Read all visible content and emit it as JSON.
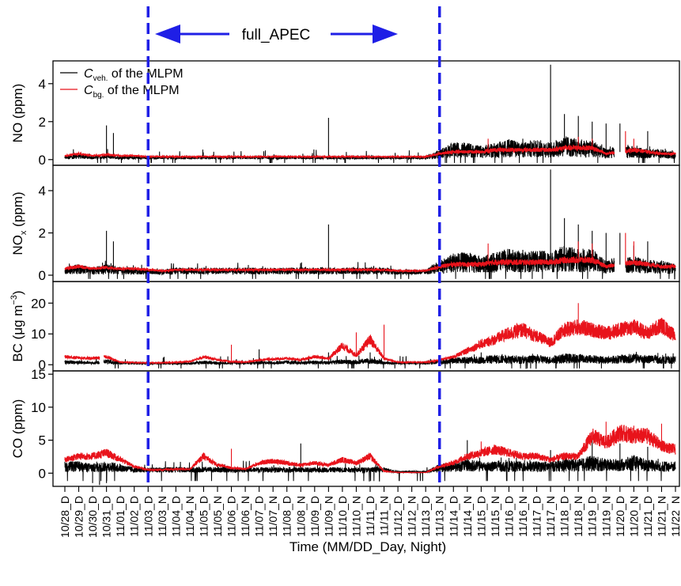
{
  "chart_data": {
    "type": "line",
    "annotation": {
      "label": "full_APEC",
      "start": "11/03_D",
      "end": "11/13_N",
      "line_color": "#1f1fe6"
    },
    "legend": {
      "placement": "top-left",
      "entries": [
        {
          "symbol": "C",
          "subscript": "veh.",
          "suffix": " of  the MLPM",
          "color": "#000000"
        },
        {
          "symbol": "C",
          "subscript": "bg.",
          "suffix": " of  the MLPM",
          "color": "#e8131b"
        }
      ]
    },
    "x": {
      "label": "Time (MM/DD_Day, Night)",
      "ticks": [
        "10/28_D",
        "10/29_D",
        "10/30_D",
        "10/31_D",
        "11/01_D",
        "11/02_D",
        "11/03_D",
        "11/03_N",
        "11/04_D",
        "11/04_N",
        "11/05_D",
        "11/05_N",
        "11/06_D",
        "11/06_N",
        "11/07_D",
        "11/07_N",
        "11/08_D",
        "11/08_N",
        "11/09_D",
        "11/09_N",
        "11/10_D",
        "11/10_N",
        "11/11_D",
        "11/11_N",
        "11/12_D",
        "11/12_N",
        "11/13_D",
        "11/13_N",
        "11/14_D",
        "11/14_N",
        "11/15_D",
        "11/15_N",
        "11/16_D",
        "11/16_N",
        "11/17_D",
        "11/17_N",
        "11/18_D",
        "11/18_N",
        "11/19_D",
        "11/19_N",
        "11/20_D",
        "11/20_N",
        "11/21_D",
        "11/21_N",
        "11/22_N"
      ]
    },
    "panels": [
      {
        "ylabel_main": "NO (ppm)",
        "ylabel_sub": "",
        "ylabel_tail": "",
        "ylabel_sup": "",
        "ylim": [
          -0.3,
          5.2
        ],
        "yticks": [
          0,
          2,
          4
        ],
        "series": [
          {
            "values": [
              0.1,
              0.2,
              0.1,
              0.15,
              0.1,
              0.1,
              0.1,
              0.1,
              0.1,
              0.1,
              0.1,
              0.1,
              0.1,
              0.1,
              0.1,
              0.1,
              0.1,
              0.1,
              0.1,
              0.1,
              0.1,
              0.1,
              0.1,
              0.1,
              0.1,
              0.1,
              0.1,
              0.3,
              0.5,
              0.5,
              0.4,
              0.5,
              0.6,
              0.5,
              0.6,
              0.5,
              0.7,
              0.6,
              0.6,
              0.3,
              0.4,
              0.4,
              0.3,
              0.3,
              0.2
            ],
            "spikes": [
              [
                3,
                1.8
              ],
              [
                3.5,
                1.4
              ],
              [
                19,
                2.2
              ],
              [
                28,
                0.8
              ],
              [
                33,
                1.1
              ],
              [
                35,
                5.0
              ],
              [
                36,
                2.4
              ],
              [
                37,
                2.3
              ],
              [
                38,
                2.0
              ],
              [
                39,
                1.9
              ],
              [
                40,
                1.9
              ],
              [
                42,
                1.5
              ]
            ],
            "gaps": [
              [
                39.6,
                40.4
              ]
            ]
          },
          {
            "values": [
              0.2,
              0.3,
              0.2,
              0.25,
              0.2,
              0.2,
              0.15,
              0.15,
              0.15,
              0.15,
              0.15,
              0.15,
              0.15,
              0.15,
              0.15,
              0.15,
              0.15,
              0.15,
              0.15,
              0.15,
              0.15,
              0.15,
              0.15,
              0.15,
              0.15,
              0.15,
              0.15,
              0.3,
              0.4,
              0.4,
              0.4,
              0.5,
              0.5,
              0.5,
              0.5,
              0.5,
              0.6,
              0.6,
              0.6,
              0.3,
              0.4,
              0.5,
              0.4,
              0.3,
              0.3
            ],
            "spikes": [
              [
                30.5,
                1.1
              ],
              [
                37,
                1.2
              ],
              [
                38,
                1.1
              ],
              [
                40.4,
                1.5
              ],
              [
                41,
                1.1
              ]
            ],
            "gaps": [
              [
                39.6,
                40.4
              ]
            ]
          }
        ]
      },
      {
        "ylabel_main": "NO",
        "ylabel_sub": "x",
        "ylabel_tail": " (ppm)",
        "ylabel_sup": "",
        "ylim": [
          -0.3,
          5.2
        ],
        "yticks": [
          0,
          2,
          4
        ],
        "series": [
          {
            "values": [
              0.2,
              0.3,
              0.2,
              0.3,
              0.2,
              0.2,
              0.15,
              0.15,
              0.2,
              0.2,
              0.2,
              0.2,
              0.2,
              0.2,
              0.2,
              0.2,
              0.2,
              0.2,
              0.2,
              0.2,
              0.2,
              0.2,
              0.2,
              0.2,
              0.15,
              0.15,
              0.15,
              0.4,
              0.6,
              0.6,
              0.5,
              0.6,
              0.7,
              0.6,
              0.7,
              0.6,
              0.8,
              0.7,
              0.7,
              0.4,
              0.5,
              0.5,
              0.4,
              0.4,
              0.3
            ],
            "spikes": [
              [
                3,
                2.1
              ],
              [
                3.5,
                1.6
              ],
              [
                19,
                2.4
              ],
              [
                33,
                1.2
              ],
              [
                35,
                5.0
              ],
              [
                36,
                2.7
              ],
              [
                37,
                2.4
              ],
              [
                38,
                2.1
              ],
              [
                39,
                2.0
              ],
              [
                40,
                2.0
              ],
              [
                41,
                1.4
              ],
              [
                42,
                1.6
              ]
            ],
            "gaps": [
              [
                39.6,
                40.4
              ]
            ]
          },
          {
            "values": [
              0.3,
              0.4,
              0.3,
              0.35,
              0.3,
              0.3,
              0.25,
              0.2,
              0.25,
              0.25,
              0.25,
              0.25,
              0.25,
              0.25,
              0.25,
              0.25,
              0.25,
              0.25,
              0.25,
              0.25,
              0.25,
              0.25,
              0.25,
              0.25,
              0.2,
              0.2,
              0.2,
              0.4,
              0.5,
              0.5,
              0.5,
              0.6,
              0.6,
              0.6,
              0.6,
              0.6,
              0.7,
              0.7,
              0.7,
              0.4,
              0.5,
              0.6,
              0.5,
              0.4,
              0.4
            ],
            "spikes": [
              [
                30.5,
                1.5
              ],
              [
                37,
                1.6
              ],
              [
                38,
                1.5
              ],
              [
                40.4,
                2.0
              ],
              [
                41,
                1.6
              ]
            ],
            "gaps": [
              [
                39.6,
                40.4
              ]
            ]
          }
        ]
      },
      {
        "ylabel_main": "BC (μg m",
        "ylabel_sub": "",
        "ylabel_tail": ")",
        "ylabel_sup": "−3",
        "ylim": [
          -2,
          27
        ],
        "yticks": [
          0,
          10,
          20
        ],
        "series": [
          {
            "values": [
              0.8,
              0.8,
              0.5,
              1.0,
              0.6,
              0.5,
              0.4,
              0.4,
              0.4,
              0.4,
              0.8,
              0.5,
              0.6,
              0.5,
              0.8,
              0.6,
              0.8,
              0.6,
              0.8,
              0.6,
              1.0,
              0.8,
              1.2,
              0.6,
              0.5,
              0.5,
              0.5,
              1.0,
              1.3,
              1.5,
              1.5,
              1.8,
              1.8,
              1.5,
              1.8,
              1.5,
              2.0,
              2.0,
              1.8,
              1.5,
              1.8,
              2.0,
              1.8,
              1.5,
              1.5
            ],
            "spikes": [
              [
                14,
                5
              ],
              [
                19,
                4
              ],
              [
                22,
                4
              ],
              [
                27,
                3
              ],
              [
                30,
                4
              ],
              [
                33,
                3
              ],
              [
                36,
                3
              ]
            ],
            "gaps": [
              [
                2.5,
                2.8
              ]
            ]
          },
          {
            "values": [
              2.5,
              2.2,
              2.0,
              2.5,
              0.8,
              0.7,
              0.6,
              0.6,
              0.8,
              1.0,
              2.5,
              1.5,
              1.0,
              0.8,
              1.5,
              1.8,
              2.0,
              1.5,
              2.5,
              2.0,
              6.0,
              3.0,
              8.0,
              2.0,
              0.8,
              0.8,
              0.8,
              1.5,
              2.5,
              4.5,
              6.5,
              8.0,
              10.0,
              11.0,
              9.0,
              7.0,
              11.0,
              12.0,
              11.0,
              10.0,
              11.0,
              12.0,
              10.0,
              12.5,
              9.0
            ],
            "spikes": [
              [
                12,
                6.5
              ],
              [
                21,
                10.5
              ],
              [
                23,
                13
              ],
              [
                37,
                20
              ],
              [
                40,
                12
              ],
              [
                43,
                14.5
              ]
            ],
            "gaps": [
              [
                2.5,
                2.8
              ]
            ]
          }
        ]
      },
      {
        "ylabel_main": "CO (ppm)",
        "ylabel_sub": "",
        "ylabel_tail": "",
        "ylabel_sup": "",
        "ylim": [
          -2,
          15.5
        ],
        "yticks": [
          0,
          5,
          10,
          15
        ],
        "series": [
          {
            "values": [
              1.0,
              1.0,
              0.8,
              1.0,
              0.8,
              0.5,
              0.5,
              0.5,
              0.5,
              0.5,
              0.5,
              0.5,
              0.5,
              0.5,
              0.5,
              0.5,
              0.5,
              0.5,
              0.5,
              0.5,
              0.5,
              0.5,
              0.5,
              0.5,
              0.2,
              0.2,
              0.2,
              0.8,
              1.0,
              1.2,
              1.0,
              1.0,
              1.0,
              1.0,
              1.0,
              1.0,
              1.2,
              1.2,
              1.5,
              1.2,
              1.2,
              1.5,
              1.2,
              1.0,
              1.0
            ],
            "spikes": [
              [
                2,
                -1.5
              ],
              [
                2.5,
                -1.8
              ],
              [
                3,
                -1.5
              ],
              [
                17,
                4.5
              ],
              [
                29,
                5
              ],
              [
                35,
                3.5
              ],
              [
                38,
                5
              ],
              [
                40,
                4.5
              ],
              [
                42,
                4
              ]
            ],
            "gaps": []
          },
          {
            "values": [
              2.0,
              2.5,
              2.5,
              3.0,
              2.0,
              1.0,
              0.5,
              0.5,
              0.6,
              0.6,
              2.5,
              1.2,
              0.8,
              0.6,
              1.5,
              1.8,
              1.5,
              1.2,
              1.5,
              1.2,
              2.0,
              1.5,
              2.5,
              0.3,
              0.1,
              0.1,
              0.1,
              1.0,
              1.5,
              2.5,
              3.0,
              3.5,
              3.0,
              2.5,
              2.5,
              2.0,
              2.5,
              2.5,
              5.5,
              4.5,
              6.0,
              5.5,
              5.5,
              4.0,
              3.5
            ],
            "spikes": [
              [
                12,
                3.7
              ],
              [
                30,
                4.8
              ],
              [
                39,
                7.8
              ],
              [
                41,
                7.2
              ],
              [
                43,
                7.5
              ]
            ],
            "gaps": []
          }
        ]
      }
    ]
  }
}
